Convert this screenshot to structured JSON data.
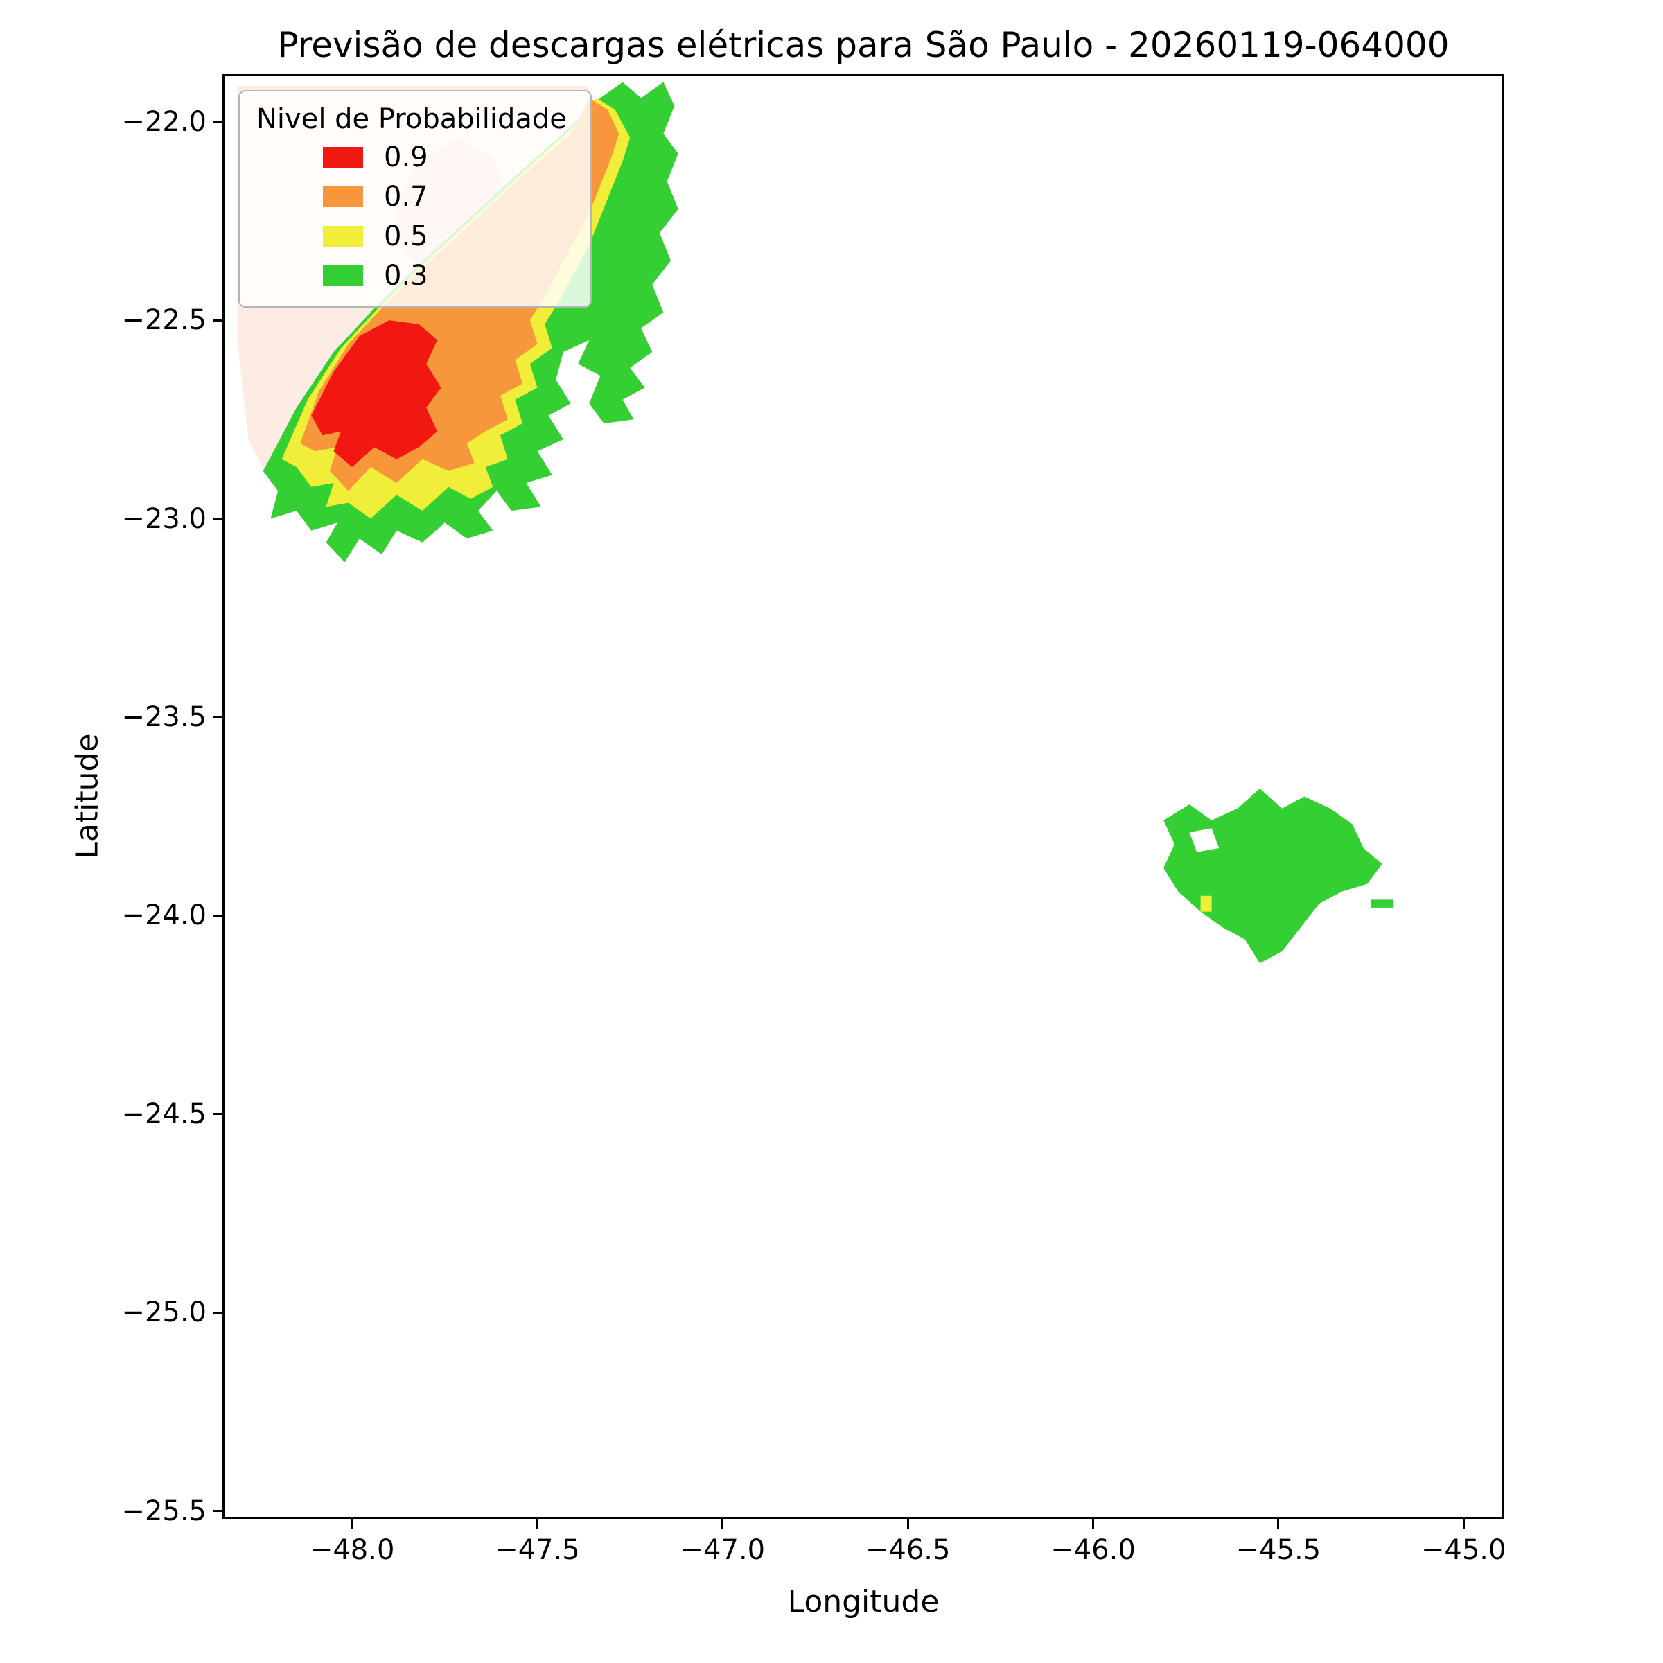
{
  "figure": {
    "title": "Previsão de descargas elétricas para São Paulo - 20260119-064000"
  },
  "axes": {
    "xlabel": "Longitude",
    "ylabel": "Latitude"
  },
  "legend": {
    "title": "Nivel de Probabilidade",
    "entries": [
      {
        "label": "0.9",
        "color": "#f01810"
      },
      {
        "label": "0.7",
        "color": "#f7963b"
      },
      {
        "label": "0.5",
        "color": "#f0ee39"
      },
      {
        "label": "0.3",
        "color": "#33cf33"
      }
    ]
  },
  "chart_data": {
    "type": "filled-contour-map",
    "title": "Previsão de descargas elétricas para São Paulo - 20260119-064000",
    "xlabel": "Longitude",
    "ylabel": "Latitude",
    "xlim": [
      -48.35,
      -44.89
    ],
    "ylim": [
      -25.52,
      -21.88
    ],
    "grid": false,
    "legend_position": "upper-left",
    "xticks": [
      {
        "value": -48.0,
        "label": "−48.0"
      },
      {
        "value": -47.5,
        "label": "−47.5"
      },
      {
        "value": -47.0,
        "label": "−47.0"
      },
      {
        "value": -46.5,
        "label": "−46.5"
      },
      {
        "value": -46.0,
        "label": "−46.0"
      },
      {
        "value": -45.5,
        "label": "−45.5"
      },
      {
        "value": -45.0,
        "label": "−45.0"
      }
    ],
    "yticks": [
      {
        "value": -22.0,
        "label": "−22.0"
      },
      {
        "value": -22.5,
        "label": "−22.5"
      },
      {
        "value": -23.0,
        "label": "−23.0"
      },
      {
        "value": -23.5,
        "label": "−23.5"
      },
      {
        "value": -24.0,
        "label": "−24.0"
      },
      {
        "value": -24.5,
        "label": "−24.5"
      },
      {
        "value": -25.0,
        "label": "−25.0"
      },
      {
        "value": -25.5,
        "label": "−25.5"
      }
    ],
    "contour_levels": [
      {
        "probability": 0.9,
        "color": "#f01810"
      },
      {
        "probability": 0.7,
        "color": "#f7963b"
      },
      {
        "probability": 0.5,
        "color": "#f0ee39"
      },
      {
        "probability": 0.3,
        "color": "#33cf33"
      }
    ],
    "regions": [
      {
        "name": "west-cell-halo",
        "level": null,
        "color": "#fdece4",
        "points": [
          [
            -48.31,
            -21.91
          ],
          [
            -47.36,
            -21.91
          ],
          [
            -47.42,
            -22.03
          ],
          [
            -47.52,
            -22.13
          ],
          [
            -47.66,
            -22.25
          ],
          [
            -47.8,
            -22.37
          ],
          [
            -47.92,
            -22.48
          ],
          [
            -48.01,
            -22.57
          ],
          [
            -48.09,
            -22.69
          ],
          [
            -48.15,
            -22.82
          ],
          [
            -48.21,
            -22.93
          ],
          [
            -48.28,
            -22.8
          ],
          [
            -48.31,
            -22.55
          ]
        ]
      },
      {
        "name": "west-cell-halo-pink",
        "level": null,
        "color": "#f8d3c9",
        "points": [
          [
            -47.89,
            -22.21
          ],
          [
            -47.81,
            -22.09
          ],
          [
            -47.71,
            -22.04
          ],
          [
            -47.62,
            -22.09
          ],
          [
            -47.58,
            -22.18
          ],
          [
            -47.62,
            -22.28
          ],
          [
            -47.7,
            -22.37
          ],
          [
            -47.8,
            -22.39
          ],
          [
            -47.87,
            -22.31
          ]
        ]
      },
      {
        "name": "west-cell-p30",
        "level": 0.3,
        "color": "#33cf33",
        "points": [
          [
            -48.24,
            -22.88
          ],
          [
            -48.15,
            -22.72
          ],
          [
            -48.05,
            -22.58
          ],
          [
            -47.94,
            -22.47
          ],
          [
            -47.82,
            -22.36
          ],
          [
            -47.68,
            -22.24
          ],
          [
            -47.54,
            -22.12
          ],
          [
            -47.42,
            -22.02
          ],
          [
            -47.33,
            -21.94
          ],
          [
            -47.27,
            -21.9
          ],
          [
            -47.22,
            -21.94
          ],
          [
            -47.16,
            -21.9
          ],
          [
            -47.13,
            -21.96
          ],
          [
            -47.16,
            -22.03
          ],
          [
            -47.12,
            -22.08
          ],
          [
            -47.15,
            -22.15
          ],
          [
            -47.12,
            -22.22
          ],
          [
            -47.17,
            -22.28
          ],
          [
            -47.14,
            -22.35
          ],
          [
            -47.19,
            -22.41
          ],
          [
            -47.16,
            -22.48
          ],
          [
            -47.22,
            -22.52
          ],
          [
            -47.19,
            -22.58
          ],
          [
            -47.25,
            -22.62
          ],
          [
            -47.21,
            -22.67
          ],
          [
            -47.27,
            -22.7
          ],
          [
            -47.24,
            -22.75
          ],
          [
            -47.32,
            -22.76
          ],
          [
            -47.36,
            -22.71
          ],
          [
            -47.33,
            -22.64
          ],
          [
            -47.39,
            -22.61
          ],
          [
            -47.36,
            -22.55
          ],
          [
            -47.43,
            -22.58
          ],
          [
            -47.45,
            -22.65
          ],
          [
            -47.41,
            -22.71
          ],
          [
            -47.47,
            -22.74
          ],
          [
            -47.43,
            -22.8
          ],
          [
            -47.5,
            -22.83
          ],
          [
            -47.46,
            -22.89
          ],
          [
            -47.53,
            -22.91
          ],
          [
            -47.49,
            -22.97
          ],
          [
            -47.57,
            -22.98
          ],
          [
            -47.61,
            -22.93
          ],
          [
            -47.66,
            -22.98
          ],
          [
            -47.62,
            -23.03
          ],
          [
            -47.69,
            -23.05
          ],
          [
            -47.75,
            -23.01
          ],
          [
            -47.81,
            -23.06
          ],
          [
            -47.88,
            -23.03
          ],
          [
            -47.92,
            -23.09
          ],
          [
            -47.98,
            -23.05
          ],
          [
            -48.02,
            -23.11
          ],
          [
            -48.07,
            -23.06
          ],
          [
            -48.04,
            -23.01
          ],
          [
            -48.11,
            -23.03
          ],
          [
            -48.15,
            -22.98
          ],
          [
            -48.22,
            -23.0
          ],
          [
            -48.2,
            -22.93
          ]
        ]
      },
      {
        "name": "west-cell-p50",
        "level": 0.5,
        "color": "#f0ee39",
        "points": [
          [
            -48.19,
            -22.85
          ],
          [
            -48.12,
            -22.7
          ],
          [
            -48.03,
            -22.57
          ],
          [
            -47.93,
            -22.47
          ],
          [
            -47.81,
            -22.36
          ],
          [
            -47.67,
            -22.24
          ],
          [
            -47.53,
            -22.12
          ],
          [
            -47.41,
            -22.02
          ],
          [
            -47.34,
            -21.94
          ],
          [
            -47.29,
            -21.97
          ],
          [
            -47.25,
            -22.04
          ],
          [
            -47.27,
            -22.1
          ],
          [
            -47.3,
            -22.17
          ],
          [
            -47.33,
            -22.24
          ],
          [
            -47.36,
            -22.31
          ],
          [
            -47.4,
            -22.38
          ],
          [
            -47.44,
            -22.45
          ],
          [
            -47.48,
            -22.51
          ],
          [
            -47.46,
            -22.57
          ],
          [
            -47.52,
            -22.61
          ],
          [
            -47.5,
            -22.67
          ],
          [
            -47.56,
            -22.7
          ],
          [
            -47.54,
            -22.76
          ],
          [
            -47.6,
            -22.79
          ],
          [
            -47.58,
            -22.85
          ],
          [
            -47.64,
            -22.87
          ],
          [
            -47.62,
            -22.92
          ],
          [
            -47.68,
            -22.95
          ],
          [
            -47.74,
            -22.92
          ],
          [
            -47.81,
            -22.98
          ],
          [
            -47.88,
            -22.94
          ],
          [
            -47.95,
            -23.0
          ],
          [
            -48.01,
            -22.96
          ],
          [
            -48.07,
            -22.97
          ],
          [
            -48.05,
            -22.91
          ],
          [
            -48.11,
            -22.92
          ],
          [
            -48.15,
            -22.87
          ]
        ]
      },
      {
        "name": "west-cell-p70",
        "level": 0.7,
        "color": "#f7963b",
        "points": [
          [
            -48.14,
            -22.81
          ],
          [
            -48.09,
            -22.68
          ],
          [
            -48.01,
            -22.56
          ],
          [
            -47.92,
            -22.47
          ],
          [
            -47.8,
            -22.36
          ],
          [
            -47.66,
            -22.24
          ],
          [
            -47.52,
            -22.12
          ],
          [
            -47.41,
            -22.03
          ],
          [
            -47.36,
            -21.94
          ],
          [
            -47.31,
            -21.97
          ],
          [
            -47.28,
            -22.03
          ],
          [
            -47.3,
            -22.09
          ],
          [
            -47.33,
            -22.16
          ],
          [
            -47.36,
            -22.23
          ],
          [
            -47.4,
            -22.3
          ],
          [
            -47.44,
            -22.37
          ],
          [
            -47.48,
            -22.44
          ],
          [
            -47.52,
            -22.5
          ],
          [
            -47.5,
            -22.56
          ],
          [
            -47.56,
            -22.6
          ],
          [
            -47.54,
            -22.66
          ],
          [
            -47.6,
            -22.69
          ],
          [
            -47.58,
            -22.75
          ],
          [
            -47.64,
            -22.78
          ],
          [
            -47.69,
            -22.81
          ],
          [
            -47.67,
            -22.86
          ],
          [
            -47.74,
            -22.88
          ],
          [
            -47.81,
            -22.85
          ],
          [
            -47.88,
            -22.91
          ],
          [
            -47.95,
            -22.87
          ],
          [
            -48.01,
            -22.93
          ],
          [
            -48.06,
            -22.88
          ],
          [
            -48.04,
            -22.82
          ],
          [
            -48.1,
            -22.83
          ]
        ]
      },
      {
        "name": "west-cell-p90",
        "level": 0.9,
        "color": "#f01810",
        "points": [
          [
            -48.11,
            -22.74
          ],
          [
            -48.05,
            -22.63
          ],
          [
            -47.98,
            -22.54
          ],
          [
            -47.9,
            -22.5
          ],
          [
            -47.82,
            -22.51
          ],
          [
            -47.77,
            -22.55
          ],
          [
            -47.8,
            -22.61
          ],
          [
            -47.76,
            -22.67
          ],
          [
            -47.8,
            -22.72
          ],
          [
            -47.77,
            -22.78
          ],
          [
            -47.82,
            -22.82
          ],
          [
            -47.88,
            -22.85
          ],
          [
            -47.94,
            -22.82
          ],
          [
            -48.0,
            -22.87
          ],
          [
            -48.05,
            -22.83
          ],
          [
            -48.03,
            -22.78
          ],
          [
            -48.08,
            -22.79
          ]
        ]
      },
      {
        "name": "east-cell-p30",
        "level": 0.3,
        "color": "#33cf33",
        "points": [
          [
            -45.81,
            -23.76
          ],
          [
            -45.74,
            -23.72
          ],
          [
            -45.68,
            -23.76
          ],
          [
            -45.61,
            -23.73
          ],
          [
            -45.55,
            -23.68
          ],
          [
            -45.49,
            -23.73
          ],
          [
            -45.43,
            -23.7
          ],
          [
            -45.36,
            -23.73
          ],
          [
            -45.3,
            -23.77
          ],
          [
            -45.27,
            -23.83
          ],
          [
            -45.22,
            -23.87
          ],
          [
            -45.26,
            -23.92
          ],
          [
            -45.33,
            -23.94
          ],
          [
            -45.39,
            -23.97
          ],
          [
            -45.44,
            -24.03
          ],
          [
            -45.49,
            -24.09
          ],
          [
            -45.55,
            -24.12
          ],
          [
            -45.59,
            -24.06
          ],
          [
            -45.65,
            -24.03
          ],
          [
            -45.71,
            -23.99
          ],
          [
            -45.77,
            -23.94
          ],
          [
            -45.81,
            -23.88
          ],
          [
            -45.78,
            -23.82
          ]
        ]
      },
      {
        "name": "east-cell-hole",
        "level": null,
        "color": "#ffffff",
        "points": [
          [
            -45.74,
            -23.79
          ],
          [
            -45.68,
            -23.78
          ],
          [
            -45.66,
            -23.83
          ],
          [
            -45.72,
            -23.84
          ]
        ]
      },
      {
        "name": "east-cell-p50-speck",
        "level": 0.5,
        "color": "#f0ee39",
        "points": [
          [
            -45.71,
            -23.95
          ],
          [
            -45.68,
            -23.95
          ],
          [
            -45.68,
            -23.99
          ],
          [
            -45.71,
            -23.99
          ]
        ]
      },
      {
        "name": "east-cell-p30-fragment",
        "level": 0.3,
        "color": "#33cf33",
        "points": [
          [
            -45.25,
            -23.96
          ],
          [
            -45.19,
            -23.96
          ],
          [
            -45.19,
            -23.98
          ],
          [
            -45.25,
            -23.98
          ]
        ]
      }
    ]
  }
}
